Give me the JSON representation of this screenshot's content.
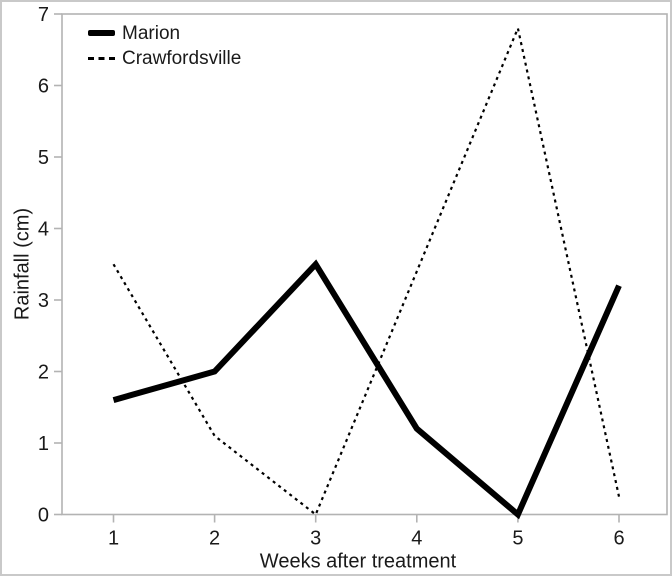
{
  "chart_data": {
    "type": "line",
    "title": "",
    "xlabel": "Weeks after treatment",
    "ylabel": "Rainfall (cm)",
    "x": [
      1,
      2,
      3,
      4,
      5,
      6
    ],
    "x_ticks": [
      1,
      2,
      3,
      4,
      5,
      6
    ],
    "y_ticks": [
      0,
      1,
      2,
      3,
      4,
      5,
      6,
      7
    ],
    "xlim": [
      0.5,
      6.5
    ],
    "ylim": [
      0,
      7
    ],
    "grid": false,
    "legend_position": "top-left-inside",
    "series": [
      {
        "name": "Marion",
        "style": "solid",
        "stroke_width": 6,
        "color": "#000000",
        "values": [
          1.6,
          2.0,
          3.5,
          1.2,
          0.0,
          3.2
        ]
      },
      {
        "name": "Crawfordsville",
        "style": "dashed",
        "stroke_width": 2.2,
        "color": "#000000",
        "values": [
          3.5,
          1.1,
          0.0,
          3.4,
          6.8,
          0.25
        ]
      }
    ],
    "colors": {
      "spine": "#b3b3b3",
      "tick": "#b3b3b3",
      "text": "#1a1a1a",
      "line": "#000000",
      "background": "#ffffff"
    }
  }
}
